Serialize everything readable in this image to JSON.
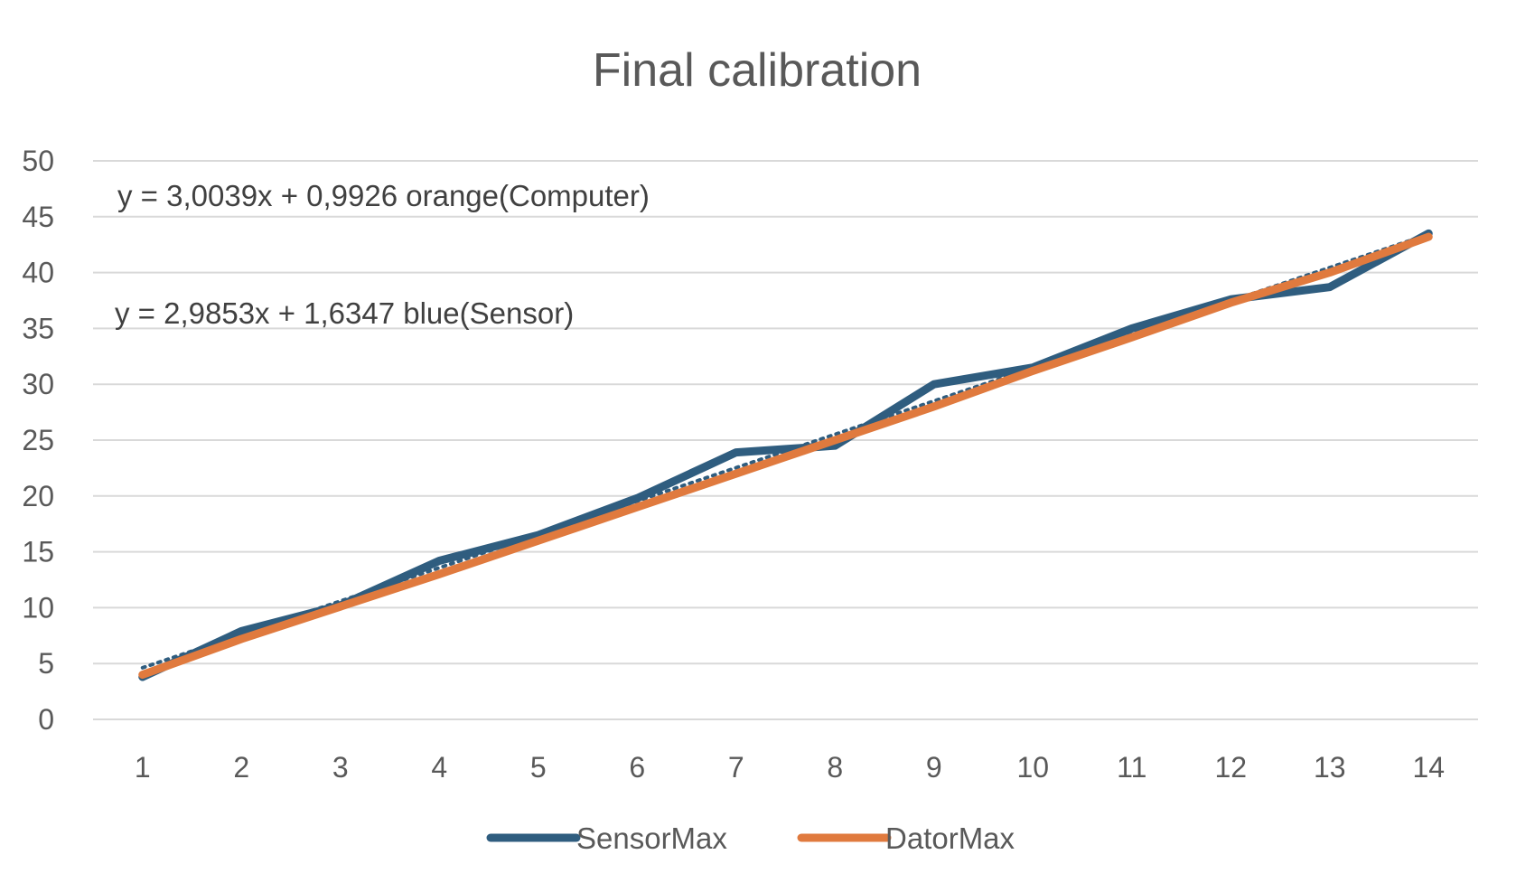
{
  "chart_data": {
    "type": "line",
    "title": "Final calibration",
    "xlabel": "",
    "ylabel": "",
    "categories": [
      "1",
      "2",
      "3",
      "4",
      "5",
      "6",
      "7",
      "8",
      "9",
      "10",
      "11",
      "12",
      "13",
      "14"
    ],
    "ylim": [
      0,
      50
    ],
    "yticks": [
      "0",
      "5",
      "10",
      "15",
      "20",
      "25",
      "30",
      "35",
      "40",
      "45",
      "50"
    ],
    "grid": "horizontal",
    "legend": "bottom",
    "series": [
      {
        "name": "SensorMax",
        "color": "#2f5d7f",
        "values": [
          3.8,
          7.9,
          10.2,
          14.2,
          16.5,
          19.8,
          23.9,
          24.5,
          30.0,
          31.5,
          35.0,
          37.6,
          38.7,
          43.5
        ]
      },
      {
        "name": "DatorMax",
        "color": "#e07a3e",
        "values": [
          4.0,
          7.2,
          10.1,
          13.0,
          16.0,
          19.0,
          22.0,
          25.0,
          28.0,
          31.2,
          34.2,
          37.3,
          40.0,
          43.2
        ]
      }
    ],
    "trendline": {
      "series": "SensorMax",
      "slope": 2.9853,
      "intercept": 1.6347,
      "color": "#2f5d7f",
      "style": "dotted"
    },
    "annotations": [
      "y = 3,0039x + 0,9926 orange(Computer)",
      "y = 2,9853x + 1,6347 blue(Sensor)"
    ]
  }
}
